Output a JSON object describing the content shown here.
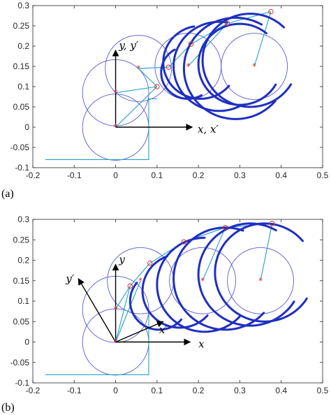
{
  "panels": [
    {
      "label": "(a)",
      "annotations": {
        "x_text": "x, x′",
        "y_text": "y, y′"
      }
    },
    {
      "label": "(b)",
      "annotations": {
        "x_text": "x",
        "y_text": "y",
        "xp_text": "x′",
        "yp_text": "y′"
      }
    }
  ],
  "colors": {
    "arc": "#1f2fc0",
    "circle": "#5a5ad8",
    "link": "#21a3c8",
    "marker": "#e0302a",
    "axis": "#000000",
    "frame": "#262626"
  },
  "chart_data": [
    {
      "type": "line",
      "title": "",
      "xlim": [
        -0.2,
        0.5
      ],
      "ylim": [
        -0.1,
        0.3
      ],
      "xticks": [
        -0.2,
        -0.1,
        0,
        0.1,
        0.2,
        0.3,
        0.4,
        0.5
      ],
      "yticks": [
        -0.1,
        -0.05,
        0,
        0.05,
        0.1,
        0.15,
        0.2,
        0.25,
        0.3
      ],
      "grid": false,
      "circles": [
        {
          "cx": 0,
          "cy": 0,
          "r": 0.08
        },
        {
          "cx": 0,
          "cy": 0.085,
          "r": 0.08
        },
        {
          "cx": 0.055,
          "cy": 0.145,
          "r": 0.08
        },
        {
          "cx": 0.175,
          "cy": 0.15,
          "r": 0.08
        },
        {
          "cx": 0.335,
          "cy": 0.15,
          "r": 0.08
        }
      ],
      "centers": [
        {
          "x": 0,
          "y": 0
        },
        {
          "x": 0,
          "y": 0.085
        },
        {
          "x": 0.055,
          "y": 0.145
        },
        {
          "x": 0.175,
          "y": 0.15
        },
        {
          "x": 0.335,
          "y": 0.15
        }
      ],
      "tips": [
        {
          "x": 0.1,
          "y": 0.1
        },
        {
          "x": 0.128,
          "y": 0.148
        },
        {
          "x": 0.182,
          "y": 0.205
        },
        {
          "x": 0.27,
          "y": 0.256
        },
        {
          "x": 0.375,
          "y": 0.285
        }
      ],
      "links": [
        [
          [
            0,
            0
          ],
          [
            0.1,
            0.1
          ]
        ],
        [
          [
            0,
            0.085
          ],
          [
            0.1,
            0.1
          ]
        ],
        [
          [
            0.055,
            0.145
          ],
          [
            0.1,
            0.1
          ]
        ],
        [
          [
            0.055,
            0.145
          ],
          [
            0.128,
            0.148
          ]
        ],
        [
          [
            0.128,
            0.148
          ],
          [
            0.182,
            0.205
          ]
        ],
        [
          [
            0.182,
            0.205
          ],
          [
            0.27,
            0.256
          ]
        ],
        [
          [
            0.175,
            0.15
          ],
          [
            0.27,
            0.256
          ]
        ],
        [
          [
            0.27,
            0.256
          ],
          [
            0.375,
            0.285
          ]
        ],
        [
          [
            0.335,
            0.15
          ],
          [
            0.375,
            0.285
          ]
        ]
      ],
      "path": [
        [
          -0.17,
          -0.08
        ],
        [
          0.08,
          -0.08
        ],
        [
          0.08,
          0.07
        ],
        [
          0.1,
          0.07
        ]
      ],
      "arcs": [
        {
          "cx": 0.175,
          "cy": 0.135,
          "r": 0.065,
          "start": 120,
          "end": 300
        },
        {
          "cx": 0.205,
          "cy": 0.16,
          "r": 0.09,
          "start": 100,
          "end": 320
        },
        {
          "cx": 0.25,
          "cy": 0.15,
          "r": 0.11,
          "start": 80,
          "end": 300
        },
        {
          "cx": 0.29,
          "cy": 0.145,
          "r": 0.125,
          "start": 60,
          "end": 320
        },
        {
          "cx": 0.3,
          "cy": 0.155,
          "r": 0.1,
          "start": 50,
          "end": 330
        },
        {
          "cx": 0.325,
          "cy": 0.165,
          "r": 0.115,
          "start": 45,
          "end": 330
        }
      ],
      "axes_arrows": [
        {
          "from": [
            0,
            0
          ],
          "to": [
            0.185,
            0
          ],
          "label": "x_text",
          "dx": 0.013,
          "dy": -0.005
        },
        {
          "from": [
            0,
            0
          ],
          "to": [
            0,
            0.19
          ],
          "label": "y_text",
          "dx": 0.008,
          "dy": 0.012
        }
      ]
    },
    {
      "type": "line",
      "title": "",
      "xlim": [
        -0.2,
        0.5
      ],
      "ylim": [
        -0.1,
        0.3
      ],
      "xticks": [
        -0.2,
        -0.1,
        0,
        0.1,
        0.2,
        0.3,
        0.4,
        0.5
      ],
      "yticks": [
        -0.1,
        -0.05,
        0,
        0.05,
        0.1,
        0.15,
        0.2,
        0.25,
        0.3
      ],
      "grid": false,
      "circles": [
        {
          "cx": 0,
          "cy": 0,
          "r": 0.08
        },
        {
          "cx": 0,
          "cy": 0.08,
          "r": 0.08
        },
        {
          "cx": 0.06,
          "cy": 0.15,
          "r": 0.08
        },
        {
          "cx": 0.21,
          "cy": 0.15,
          "r": 0.08
        },
        {
          "cx": 0.35,
          "cy": 0.15,
          "r": 0.08
        }
      ],
      "centers": [
        {
          "x": 0,
          "y": 0
        },
        {
          "x": 0,
          "y": 0.08
        },
        {
          "x": 0.06,
          "y": 0.15
        },
        {
          "x": 0.21,
          "y": 0.15
        },
        {
          "x": 0.35,
          "y": 0.15
        }
      ],
      "tips": [
        {
          "x": 0.035,
          "y": 0.137
        },
        {
          "x": 0.083,
          "y": 0.193
        },
        {
          "x": 0.165,
          "y": 0.245
        },
        {
          "x": 0.265,
          "y": 0.28
        },
        {
          "x": 0.378,
          "y": 0.29
        }
      ],
      "links": [
        [
          [
            0,
            0
          ],
          [
            0.035,
            0.137
          ]
        ],
        [
          [
            0,
            0.08
          ],
          [
            0.035,
            0.137
          ]
        ],
        [
          [
            0,
            0
          ],
          [
            0.06,
            0.15
          ]
        ],
        [
          [
            0.035,
            0.137
          ],
          [
            0.083,
            0.193
          ]
        ],
        [
          [
            0.083,
            0.193
          ],
          [
            0.165,
            0.245
          ]
        ],
        [
          [
            0.165,
            0.245
          ],
          [
            0.265,
            0.28
          ]
        ],
        [
          [
            0.21,
            0.15
          ],
          [
            0.265,
            0.28
          ]
        ],
        [
          [
            0.265,
            0.28
          ],
          [
            0.378,
            0.29
          ]
        ],
        [
          [
            0.35,
            0.15
          ],
          [
            0.378,
            0.29
          ]
        ]
      ],
      "path": [
        [
          -0.17,
          -0.08
        ],
        [
          0.08,
          -0.08
        ],
        [
          0.08,
          0.07
        ]
      ],
      "arcs": [
        {
          "cx": 0.105,
          "cy": 0.1,
          "r": 0.07,
          "start": 140,
          "end": 320
        },
        {
          "cx": 0.155,
          "cy": 0.125,
          "r": 0.09,
          "start": 110,
          "end": 320
        },
        {
          "cx": 0.215,
          "cy": 0.14,
          "r": 0.115,
          "start": 90,
          "end": 320
        },
        {
          "cx": 0.265,
          "cy": 0.155,
          "r": 0.125,
          "start": 70,
          "end": 320
        },
        {
          "cx": 0.325,
          "cy": 0.165,
          "r": 0.125,
          "start": 60,
          "end": 330
        },
        {
          "cx": 0.36,
          "cy": 0.17,
          "r": 0.12,
          "start": 40,
          "end": 330
        }
      ],
      "axes_arrows": [
        {
          "from": [
            0,
            0
          ],
          "to": [
            0.18,
            0
          ],
          "label": "x_text",
          "dx": 0.02,
          "dy": -0.005
        },
        {
          "from": [
            0,
            0
          ],
          "to": [
            0,
            0.19
          ],
          "label": "y_text",
          "dx": 0.008,
          "dy": 0.012
        },
        {
          "from": [
            0,
            0
          ],
          "to": [
            0.115,
            0.05
          ],
          "label": "xp_text",
          "dx": -0.01,
          "dy": -0.02
        },
        {
          "from": [
            0,
            0
          ],
          "to": [
            -0.09,
            0.155
          ],
          "label": "yp_text",
          "dx": -0.03,
          "dy": 0.0
        }
      ]
    }
  ]
}
